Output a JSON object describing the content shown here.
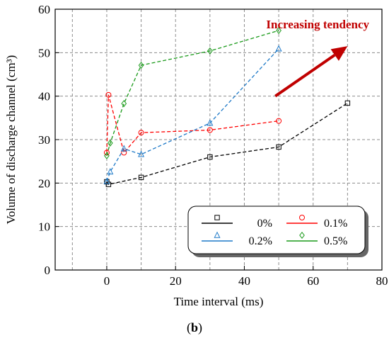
{
  "chart_data": {
    "type": "line",
    "xlabel": "Time interval  (ms)",
    "ylabel": "Volume of discharge channel (cm³)",
    "xlim": [
      -15,
      80
    ],
    "ylim": [
      0,
      60
    ],
    "xticks": [
      0,
      20,
      40,
      60,
      80
    ],
    "yticks": [
      0,
      10,
      20,
      30,
      40,
      50,
      60
    ],
    "grid": true,
    "legend_position": "bottom-right",
    "series": [
      {
        "name": "0%",
        "color": "#000000",
        "marker": "square",
        "x": [
          0,
          0.5,
          10,
          30,
          50,
          70
        ],
        "y": [
          20.3,
          19.7,
          21.3,
          26.0,
          28.3,
          38.4
        ]
      },
      {
        "name": "0.1%",
        "color": "#ff0000",
        "marker": "circle",
        "x": [
          0,
          0.5,
          5,
          10,
          30,
          50
        ],
        "y": [
          27.0,
          40.3,
          27.0,
          31.6,
          32.2,
          34.3
        ]
      },
      {
        "name": "0.2%",
        "color": "#1f7ac8",
        "marker": "triangle",
        "x": [
          0,
          1,
          5,
          10,
          30,
          50
        ],
        "y": [
          20.4,
          22.6,
          27.9,
          26.6,
          33.8,
          50.9
        ]
      },
      {
        "name": "0.5%",
        "color": "#1a9a1a",
        "marker": "diamond",
        "x": [
          0,
          1,
          5,
          10,
          30,
          50
        ],
        "y": [
          26.3,
          29.2,
          38.3,
          47.1,
          50.4,
          55.1
        ]
      }
    ],
    "annotation": {
      "text": "Increasing tendency",
      "color": "#c00000",
      "arrow": {
        "from": [
          49,
          40
        ],
        "to": [
          70,
          51.5
        ]
      }
    }
  },
  "caption": {
    "open": "(",
    "label": "b",
    "close": ")"
  }
}
